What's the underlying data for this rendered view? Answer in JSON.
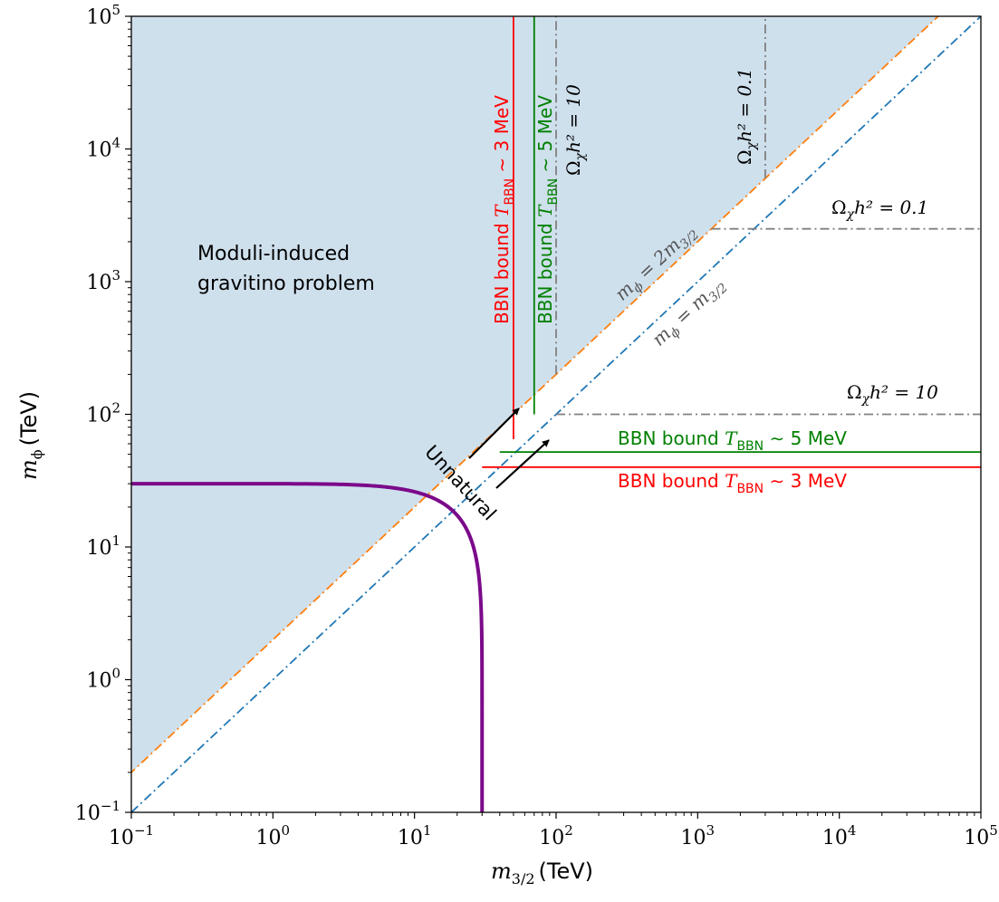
{
  "chart_data": {
    "type": "line",
    "xscale": "log",
    "yscale": "log",
    "xlim": [
      0.1,
      100000
    ],
    "ylim": [
      0.1,
      100000
    ],
    "xlabel": {
      "main": "m",
      "sub": "3/2",
      "unit": "(TeV)"
    },
    "ylabel": {
      "main": "m",
      "sub": "ϕ",
      "unit": "(TeV)"
    },
    "xticks": [
      {
        "value": 0.1,
        "base": "10",
        "exp": "−1"
      },
      {
        "value": 1,
        "base": "10",
        "exp": "0"
      },
      {
        "value": 10,
        "base": "10",
        "exp": "1"
      },
      {
        "value": 100,
        "base": "10",
        "exp": "2"
      },
      {
        "value": 1000,
        "base": "10",
        "exp": "3"
      },
      {
        "value": 10000,
        "base": "10",
        "exp": "4"
      },
      {
        "value": 100000,
        "base": "10",
        "exp": "5"
      }
    ],
    "yticks": [
      {
        "value": 0.1,
        "base": "10",
        "exp": "−1"
      },
      {
        "value": 1,
        "base": "10",
        "exp": "0"
      },
      {
        "value": 10,
        "base": "10",
        "exp": "1"
      },
      {
        "value": 100,
        "base": "10",
        "exp": "2"
      },
      {
        "value": 1000,
        "base": "10",
        "exp": "3"
      },
      {
        "value": 10000,
        "base": "10",
        "exp": "4"
      },
      {
        "value": 100000,
        "base": "10",
        "exp": "5"
      }
    ],
    "region": {
      "name": "moduli-induced-gravitino-region",
      "color": "#cfe0ed",
      "boundary": "m_phi = 2 m_3/2",
      "label_lines": [
        "Moduli-induced",
        "gravitino problem"
      ]
    },
    "lines": [
      {
        "id": "mphi-2m32",
        "kind": "diag",
        "factor": 2,
        "x_range": [
          0.05,
          100000
        ],
        "color": "#ff7f0e",
        "dash": "dashdot",
        "label": {
          "pre": "m",
          "sub": "ϕ",
          "post": " = 2m",
          "sub2": "3/2"
        }
      },
      {
        "id": "mphi-m32",
        "kind": "diag",
        "factor": 1,
        "x_range": [
          0.1,
          100000
        ],
        "color": "#1f77b4",
        "dash": "dashdot",
        "label": {
          "pre": "m",
          "sub": "ϕ",
          "post": " = m",
          "sub2": "3/2"
        }
      },
      {
        "id": "bbn-3-vertical",
        "kind": "vline",
        "x": 50,
        "y_range": [
          65,
          100000
        ],
        "color": "#ff0000",
        "dash": "solid",
        "label": {
          "pre": "BBN bound ",
          "t": "T",
          "tsub": "BBN",
          "post": " ∼ 3 MeV"
        }
      },
      {
        "id": "bbn-5-vertical",
        "kind": "vline",
        "x": 70,
        "y_range": [
          100,
          100000
        ],
        "color": "#008000",
        "dash": "solid",
        "label": {
          "pre": "BBN bound ",
          "t": "T",
          "tsub": "BBN",
          "post": " ∼ 5 MeV"
        }
      },
      {
        "id": "bbn-5-horizontal",
        "kind": "hline",
        "y": 52,
        "x_range": [
          40,
          100000
        ],
        "color": "#008000",
        "dash": "solid",
        "label": {
          "pre": "BBN bound ",
          "t": "T",
          "tsub": "BBN",
          "post": " ∼ 5 MeV"
        }
      },
      {
        "id": "bbn-3-horizontal",
        "kind": "hline",
        "y": 40,
        "x_range": [
          30,
          100000
        ],
        "color": "#ff0000",
        "dash": "solid",
        "label": {
          "pre": "BBN bound ",
          "t": "T",
          "tsub": "BBN",
          "post": " ∼ 3 MeV"
        }
      },
      {
        "id": "omega-10-vertical",
        "kind": "vline",
        "x": 100,
        "y_range": [
          200,
          100000
        ],
        "color": "#808080",
        "dash": "dashdot",
        "label": {
          "pre": "Ω",
          "sub": "χ",
          "post": "h² = 10"
        }
      },
      {
        "id": "omega-01-vertical",
        "kind": "vline",
        "x": 3000,
        "y_range": [
          6000,
          100000
        ],
        "color": "#808080",
        "dash": "dashdot",
        "label": {
          "pre": "Ω",
          "sub": "χ",
          "post": "h² = 0.1"
        }
      },
      {
        "id": "omega-10-horizontal",
        "kind": "hline",
        "y": 100,
        "x_range": [
          100,
          100000
        ],
        "color": "#808080",
        "dash": "dashdot",
        "label": {
          "pre": "Ω",
          "sub": "χ",
          "post": "h² = 10"
        }
      },
      {
        "id": "omega-01-horizontal",
        "kind": "hline",
        "y": 2500,
        "x_range": [
          1250,
          100000
        ],
        "color": "#808080",
        "dash": "dashdot",
        "label": {
          "pre": "Ω",
          "sub": "χ",
          "post": "h² = 0.1"
        }
      }
    ],
    "curve": {
      "id": "purple-boundary",
      "color": "#7b0a8a",
      "x_asymptote": 30,
      "y_asymptote": 30,
      "shape_exponent": 8
    },
    "annotation": {
      "text": "Unnatural",
      "arrows": 2
    }
  }
}
